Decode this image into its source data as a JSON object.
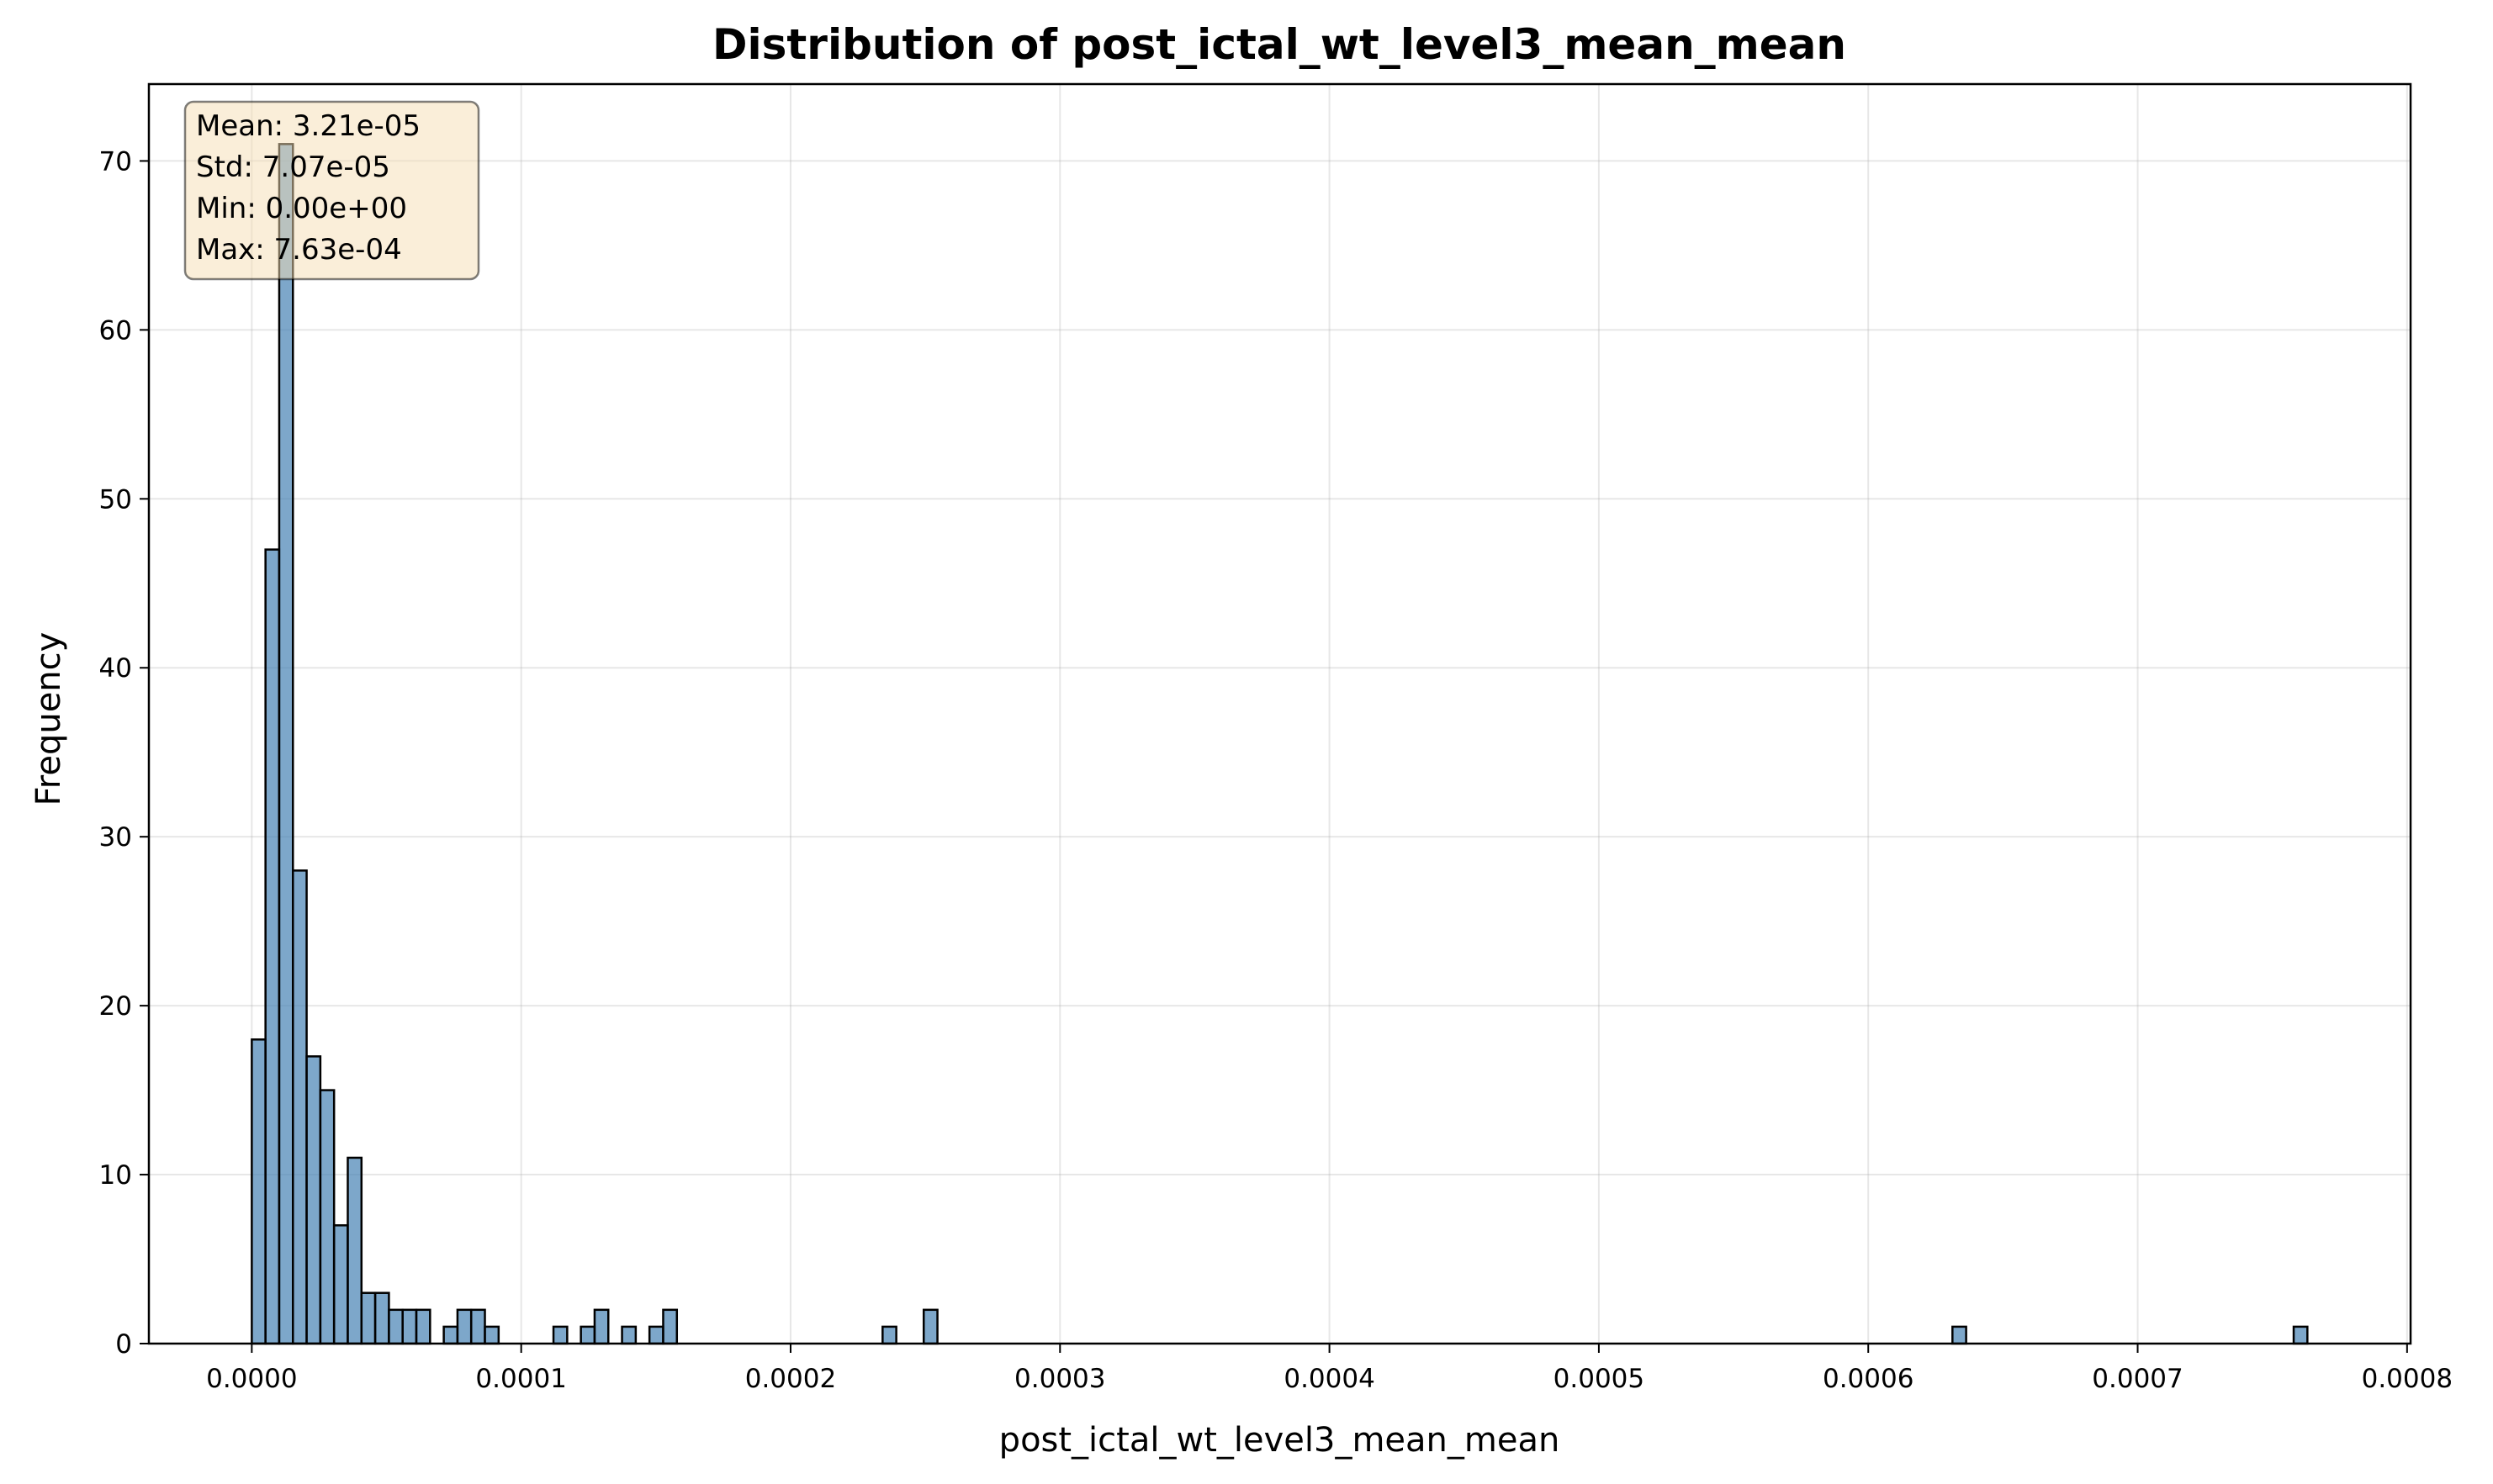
{
  "chart_data": {
    "type": "bar",
    "subtype": "histogram",
    "title": "Distribution of post_ictal_wt_level3_mean_mean",
    "xlabel": "post_ictal_wt_level3_mean_mean",
    "ylabel": "Frequency",
    "xlim": [
      -3.82e-05,
      0.0008013
    ],
    "ylim": [
      0,
      74.55
    ],
    "xticks": [
      "0.0000",
      "0.0001",
      "0.0002",
      "0.0003",
      "0.0004",
      "0.0005",
      "0.0006",
      "0.0007",
      "0.0008"
    ],
    "xtick_values": [
      0,
      0.0001,
      0.0002,
      0.0003,
      0.0004,
      0.0005,
      0.0006,
      0.0007,
      0.0008
    ],
    "yticks": [
      0,
      10,
      20,
      30,
      40,
      50,
      60,
      70
    ],
    "grid": true,
    "bar_color": "#4682b4",
    "bar_edge_color": "#000000",
    "bin_width": 5.09e-06,
    "bins": [
      {
        "start": 0.0,
        "count": 18
      },
      {
        "start": 5.09e-06,
        "count": 47
      },
      {
        "start": 1.018e-05,
        "count": 71
      },
      {
        "start": 1.527e-05,
        "count": 28
      },
      {
        "start": 2.036e-05,
        "count": 17
      },
      {
        "start": 2.545e-05,
        "count": 15
      },
      {
        "start": 3.054e-05,
        "count": 7
      },
      {
        "start": 3.563e-05,
        "count": 11
      },
      {
        "start": 4.072e-05,
        "count": 3
      },
      {
        "start": 4.581e-05,
        "count": 3
      },
      {
        "start": 5.09e-05,
        "count": 2
      },
      {
        "start": 5.599e-05,
        "count": 2
      },
      {
        "start": 6.108e-05,
        "count": 2
      },
      {
        "start": 7.126e-05,
        "count": 1
      },
      {
        "start": 7.635e-05,
        "count": 2
      },
      {
        "start": 8.144e-05,
        "count": 2
      },
      {
        "start": 8.653e-05,
        "count": 1
      },
      {
        "start": 0.00011198,
        "count": 1
      },
      {
        "start": 0.00012216,
        "count": 1
      },
      {
        "start": 0.00012725,
        "count": 2
      },
      {
        "start": 0.00013743,
        "count": 1
      },
      {
        "start": 0.00014761,
        "count": 1
      },
      {
        "start": 0.0001527,
        "count": 2
      },
      {
        "start": 0.00023414,
        "count": 1
      },
      {
        "start": 0.00024941,
        "count": 2
      },
      {
        "start": 0.00063125,
        "count": 1
      },
      {
        "start": 0.00075791,
        "count": 1
      }
    ],
    "stats_box": {
      "lines": [
        "Mean: 3.21e-05",
        "Std: 7.07e-05",
        "Min: 0.00e+00",
        "Max: 7.63e-04"
      ],
      "background": "#f5deb3",
      "location": "top-left"
    }
  }
}
